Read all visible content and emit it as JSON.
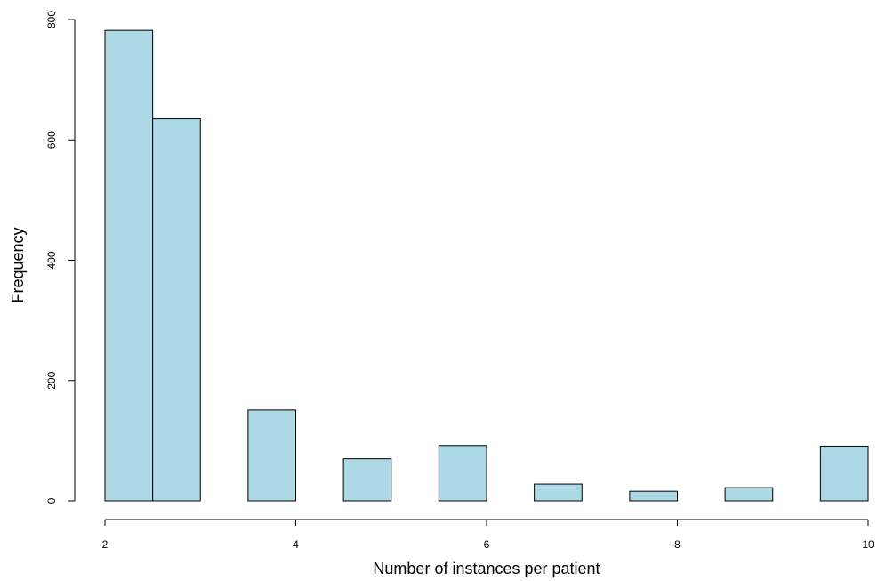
{
  "chart_data": {
    "type": "bar",
    "xlabel": "Number of instances per patient",
    "ylabel": "Frequency",
    "xlim": [
      2,
      10
    ],
    "ylim": [
      0,
      800
    ],
    "x_ticks": [
      2,
      4,
      6,
      8,
      10
    ],
    "y_ticks": [
      0,
      200,
      400,
      600,
      800
    ],
    "grid": false,
    "bar_color": "#add8e6",
    "bar_edge_color": "#000000",
    "bins": [
      {
        "x_start": 2.0,
        "x_end": 2.5,
        "value": 782
      },
      {
        "x_start": 2.5,
        "x_end": 3.0,
        "value": 635
      },
      {
        "x_start": 3.0,
        "x_end": 3.5,
        "value": 0
      },
      {
        "x_start": 3.5,
        "x_end": 4.0,
        "value": 151
      },
      {
        "x_start": 4.0,
        "x_end": 4.5,
        "value": 0
      },
      {
        "x_start": 4.5,
        "x_end": 5.0,
        "value": 70
      },
      {
        "x_start": 5.0,
        "x_end": 5.5,
        "value": 0
      },
      {
        "x_start": 5.5,
        "x_end": 6.0,
        "value": 92
      },
      {
        "x_start": 6.0,
        "x_end": 6.5,
        "value": 0
      },
      {
        "x_start": 6.5,
        "x_end": 7.0,
        "value": 28
      },
      {
        "x_start": 7.0,
        "x_end": 7.5,
        "value": 0
      },
      {
        "x_start": 7.5,
        "x_end": 8.0,
        "value": 16
      },
      {
        "x_start": 8.0,
        "x_end": 8.5,
        "value": 0
      },
      {
        "x_start": 8.5,
        "x_end": 9.0,
        "value": 22
      },
      {
        "x_start": 9.0,
        "x_end": 9.5,
        "value": 0
      },
      {
        "x_start": 9.5,
        "x_end": 10.0,
        "value": 91
      }
    ]
  }
}
